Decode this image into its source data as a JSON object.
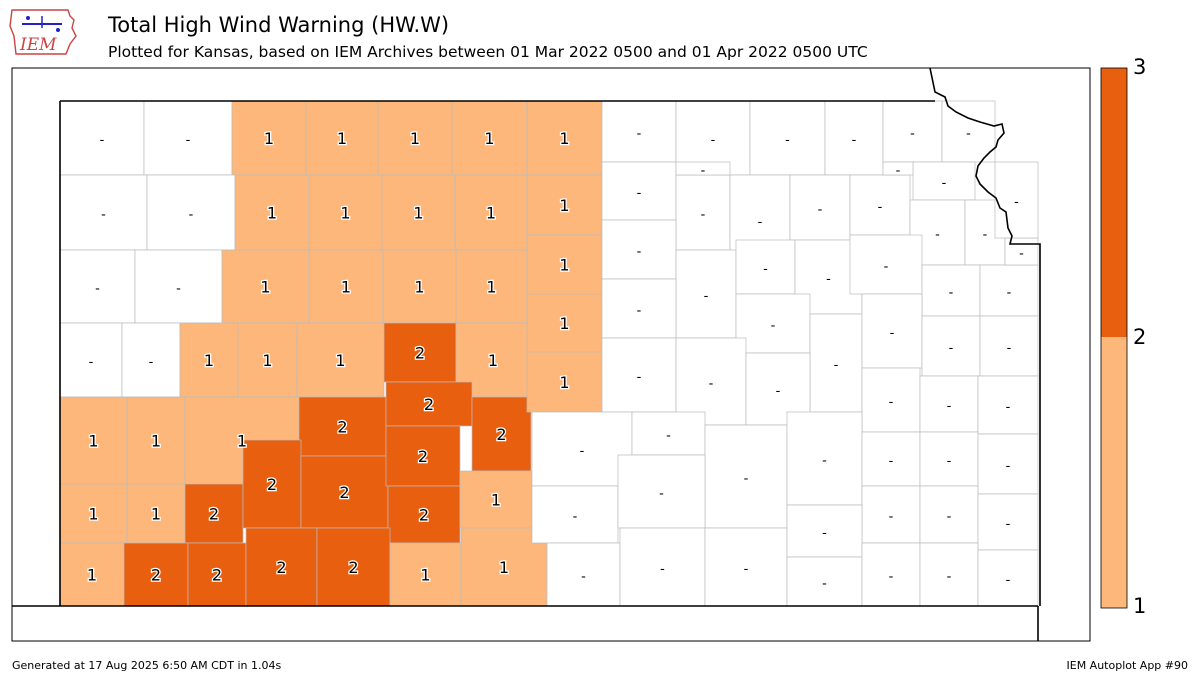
{
  "header": {
    "title": "Total High Wind Warning (HW.W)",
    "subtitle": "Plotted for Kansas, based on IEM Archives  between 01 Mar 2022 0500 and 01 Apr 2022 0500 UTC",
    "logo_text": "IEM"
  },
  "colorbar": {
    "ticks": [
      "1",
      "2",
      "3"
    ],
    "colors": {
      "one": "#fdb77a",
      "two": "#e8600f"
    }
  },
  "colors": {
    "empty": "#ffffff",
    "one": "#fdb77a",
    "two": "#e8600f",
    "grid": "#bbbbbb",
    "border": "#000000"
  },
  "counties": [
    {
      "id": "c1",
      "v": 0,
      "label": "-"
    },
    {
      "id": "c2",
      "v": 0,
      "label": "-"
    },
    {
      "id": "c3",
      "v": 1,
      "label": "1"
    },
    {
      "id": "c4",
      "v": 1,
      "label": "1"
    },
    {
      "id": "c5",
      "v": 1,
      "label": "1"
    },
    {
      "id": "c6",
      "v": 1,
      "label": "1"
    },
    {
      "id": "c7",
      "v": 1,
      "label": "1"
    },
    {
      "id": "c8",
      "v": 0,
      "label": "-"
    },
    {
      "id": "c9",
      "v": 0,
      "label": "-"
    },
    {
      "id": "c10",
      "v": 1,
      "label": "1"
    },
    {
      "id": "c11",
      "v": 1,
      "label": "1"
    },
    {
      "id": "c12",
      "v": 1,
      "label": "1"
    },
    {
      "id": "c13",
      "v": 1,
      "label": "1"
    },
    {
      "id": "c14",
      "v": 1,
      "label": "1"
    },
    {
      "id": "c15",
      "v": 0,
      "label": "-"
    },
    {
      "id": "c16",
      "v": 0,
      "label": "-"
    },
    {
      "id": "c17",
      "v": 1,
      "label": "1"
    },
    {
      "id": "c18",
      "v": 1,
      "label": "1"
    },
    {
      "id": "c19",
      "v": 1,
      "label": "1"
    },
    {
      "id": "c20",
      "v": 1,
      "label": "1"
    },
    {
      "id": "c21",
      "v": 1,
      "label": "1"
    },
    {
      "id": "c22",
      "v": 0,
      "label": "-"
    },
    {
      "id": "c23",
      "v": 0,
      "label": "-"
    },
    {
      "id": "c24",
      "v": 1,
      "label": "1"
    },
    {
      "id": "c25",
      "v": 1,
      "label": "1"
    },
    {
      "id": "c26",
      "v": 1,
      "label": "1"
    },
    {
      "id": "c27",
      "v": 2,
      "label": "2"
    },
    {
      "id": "c28",
      "v": 1,
      "label": "1"
    },
    {
      "id": "c29",
      "v": 1,
      "label": "1"
    },
    {
      "id": "c30",
      "v": 1,
      "label": "1"
    },
    {
      "id": "c31",
      "v": 1,
      "label": "1"
    },
    {
      "id": "c32",
      "v": 1,
      "label": "1"
    },
    {
      "id": "c33",
      "v": 2,
      "label": "2"
    },
    {
      "id": "c34",
      "v": 2,
      "label": "2"
    },
    {
      "id": "c35",
      "v": 2,
      "label": "2"
    },
    {
      "id": "c36",
      "v": 1,
      "label": "1"
    },
    {
      "id": "c37",
      "v": 1,
      "label": "1"
    },
    {
      "id": "c38",
      "v": 1,
      "label": "1"
    },
    {
      "id": "c39",
      "v": 2,
      "label": "2"
    },
    {
      "id": "c40",
      "v": 2,
      "label": "2"
    },
    {
      "id": "c41",
      "v": 2,
      "label": "2"
    },
    {
      "id": "c42",
      "v": 2,
      "label": "2"
    },
    {
      "id": "c43",
      "v": 2,
      "label": "2"
    },
    {
      "id": "c44",
      "v": 1,
      "label": "1"
    },
    {
      "id": "c45",
      "v": 1,
      "label": "1"
    },
    {
      "id": "c46",
      "v": 2,
      "label": "2"
    },
    {
      "id": "c47",
      "v": 2,
      "label": "2"
    },
    {
      "id": "c48",
      "v": 2,
      "label": "2"
    },
    {
      "id": "c49",
      "v": 2,
      "label": "2"
    },
    {
      "id": "c50",
      "v": 1,
      "label": "1"
    },
    {
      "id": "c51",
      "v": 1,
      "label": "1"
    },
    {
      "id": "e1",
      "v": 0,
      "label": "-"
    },
    {
      "id": "e2",
      "v": 0,
      "label": "-"
    },
    {
      "id": "e3",
      "v": 0,
      "label": "-"
    },
    {
      "id": "e4",
      "v": 0,
      "label": "-"
    },
    {
      "id": "e5",
      "v": 0,
      "label": "-"
    },
    {
      "id": "e6",
      "v": 0,
      "label": "-"
    },
    {
      "id": "e7",
      "v": 0,
      "label": "-"
    },
    {
      "id": "e8",
      "v": 0,
      "label": "-"
    },
    {
      "id": "e9",
      "v": 0,
      "label": "-"
    },
    {
      "id": "e10",
      "v": 0,
      "label": "-"
    },
    {
      "id": "e11",
      "v": 0,
      "label": "-"
    },
    {
      "id": "e12",
      "v": 0,
      "label": "-"
    },
    {
      "id": "e13",
      "v": 0,
      "label": "-"
    },
    {
      "id": "e14",
      "v": 0,
      "label": "-"
    },
    {
      "id": "e15",
      "v": 0,
      "label": "-"
    },
    {
      "id": "e16",
      "v": 0,
      "label": "-"
    },
    {
      "id": "e17",
      "v": 0,
      "label": "-"
    },
    {
      "id": "e18",
      "v": 0,
      "label": "-"
    },
    {
      "id": "e19",
      "v": 0,
      "label": "-"
    },
    {
      "id": "e20",
      "v": 0,
      "label": "-"
    },
    {
      "id": "e21",
      "v": 0,
      "label": "-"
    },
    {
      "id": "e22",
      "v": 0,
      "label": "-"
    },
    {
      "id": "e23",
      "v": 0,
      "label": "-"
    },
    {
      "id": "e24",
      "v": 0,
      "label": "-"
    },
    {
      "id": "e25",
      "v": 0,
      "label": "-"
    },
    {
      "id": "e26",
      "v": 0,
      "label": "-"
    },
    {
      "id": "e27",
      "v": 0,
      "label": "-"
    },
    {
      "id": "e28",
      "v": 0,
      "label": "-"
    },
    {
      "id": "e29",
      "v": 0,
      "label": "-"
    },
    {
      "id": "e30",
      "v": 0,
      "label": "-"
    },
    {
      "id": "e31",
      "v": 0,
      "label": "-"
    },
    {
      "id": "e32",
      "v": 0,
      "label": "-"
    },
    {
      "id": "e33",
      "v": 0,
      "label": "-"
    },
    {
      "id": "e34",
      "v": 0,
      "label": "-"
    },
    {
      "id": "e35",
      "v": 0,
      "label": "-"
    },
    {
      "id": "e36",
      "v": 0,
      "label": "-"
    },
    {
      "id": "e37",
      "v": 0,
      "label": "-"
    },
    {
      "id": "e38",
      "v": 0,
      "label": "-"
    },
    {
      "id": "e39",
      "v": 0,
      "label": "-"
    },
    {
      "id": "e40",
      "v": 0,
      "label": "-"
    },
    {
      "id": "e41",
      "v": 0,
      "label": "-"
    },
    {
      "id": "e42",
      "v": 0,
      "label": "-"
    },
    {
      "id": "e43",
      "v": 0,
      "label": "-"
    },
    {
      "id": "e44",
      "v": 0,
      "label": "-"
    },
    {
      "id": "e45",
      "v": 0,
      "label": "-"
    },
    {
      "id": "e46",
      "v": 0,
      "label": "-"
    },
    {
      "id": "e47",
      "v": 0,
      "label": "-"
    },
    {
      "id": "e48",
      "v": 0,
      "label": "-"
    },
    {
      "id": "e49",
      "v": 0,
      "label": "-"
    },
    {
      "id": "e50",
      "v": 0,
      "label": "-"
    },
    {
      "id": "e51",
      "v": 0,
      "label": "-"
    },
    {
      "id": "e52",
      "v": 0,
      "label": "-"
    },
    {
      "id": "e53",
      "v": 0,
      "label": "-"
    },
    {
      "id": "e54",
      "v": 0,
      "label": "-"
    },
    {
      "id": "e55",
      "v": 0,
      "label": "-"
    },
    {
      "id": "e56",
      "v": 0,
      "label": "-"
    },
    {
      "id": "e57",
      "v": 0,
      "label": "-"
    },
    {
      "id": "e58",
      "v": 0,
      "label": "-"
    }
  ],
  "footer": {
    "generated": "Generated at 17 Aug 2025 6:50 AM CDT in 1.04s",
    "app": "IEM Autoplot App #90"
  }
}
